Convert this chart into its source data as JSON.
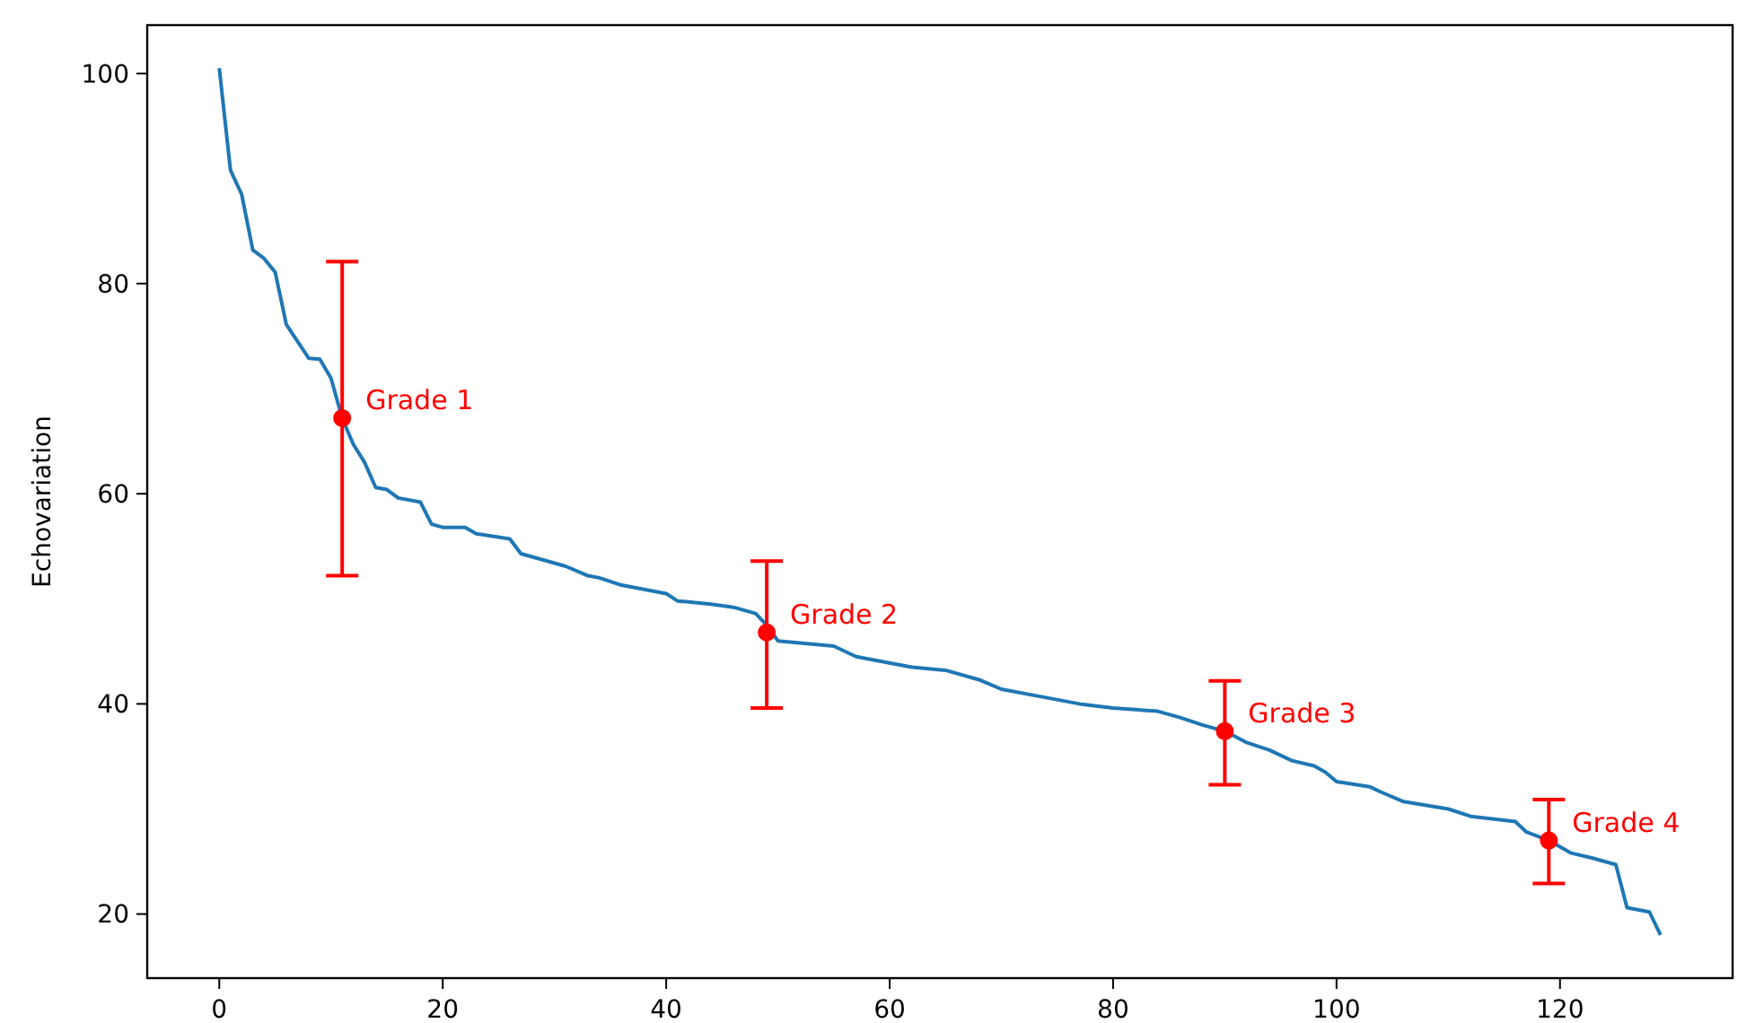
{
  "chart_data": {
    "type": "line",
    "ylabel": "Echovariation",
    "xlim": [
      -6.45,
      135.45
    ],
    "ylim": [
      13.9,
      104.6
    ],
    "xticks": [
      0,
      20,
      40,
      60,
      80,
      100,
      120
    ],
    "yticks": [
      20,
      40,
      60,
      80,
      100
    ],
    "grid": false,
    "series": [
      {
        "color": "#1f77b4",
        "marker": "none",
        "x": [
          0,
          1,
          2,
          3,
          4,
          5,
          6,
          8,
          9,
          10,
          11,
          12,
          13,
          14,
          15,
          16,
          18,
          19,
          20,
          22,
          23,
          26,
          27,
          28,
          31,
          33,
          34,
          36,
          40,
          41,
          44,
          46,
          48,
          49,
          50,
          55,
          57,
          62,
          65,
          68,
          70,
          74,
          77,
          80,
          84,
          86,
          88,
          90,
          92,
          94,
          96,
          98,
          99,
          100,
          103,
          104,
          106,
          110,
          112,
          116,
          117,
          119,
          121,
          123,
          125,
          126,
          128,
          129
        ],
        "values": [
          100.5,
          90.8,
          88.5,
          83.2,
          82.4,
          81.1,
          76.1,
          72.9,
          72.8,
          71.0,
          67.2,
          64.7,
          63.0,
          60.6,
          60.4,
          59.6,
          59.2,
          57.1,
          56.8,
          56.8,
          56.2,
          55.7,
          54.3,
          54.0,
          53.1,
          52.2,
          52.0,
          51.3,
          50.5,
          49.8,
          49.5,
          49.2,
          48.6,
          47.5,
          46.0,
          45.5,
          44.5,
          43.5,
          43.2,
          42.3,
          41.4,
          40.6,
          40.0,
          39.6,
          39.3,
          38.7,
          38.0,
          37.4,
          36.3,
          35.6,
          34.6,
          34.1,
          33.5,
          32.6,
          32.1,
          31.6,
          30.7,
          30.0,
          29.3,
          28.8,
          27.8,
          27.0,
          25.8,
          25.3,
          24.7,
          20.6,
          20.2,
          18.0
        ]
      },
      {
        "type": "scatter",
        "color": "#ff0000",
        "marker": "circle",
        "x": [
          11,
          49,
          90,
          119
        ],
        "values": [
          67.2,
          46.8,
          37.4,
          27.0
        ],
        "errors": [
          [
            52.2,
            82.1
          ],
          [
            39.6,
            53.6
          ],
          [
            32.3,
            42.2
          ],
          [
            22.9,
            30.9
          ]
        ]
      }
    ],
    "annotations": [
      {
        "text": "Grade 1",
        "x": 11,
        "y": 67.2
      },
      {
        "text": "Grade 2",
        "x": 49,
        "y": 46.8
      },
      {
        "text": "Grade 3",
        "x": 90,
        "y": 37.4
      },
      {
        "text": "Grade 4",
        "x": 119,
        "y": 27.0
      }
    ]
  }
}
